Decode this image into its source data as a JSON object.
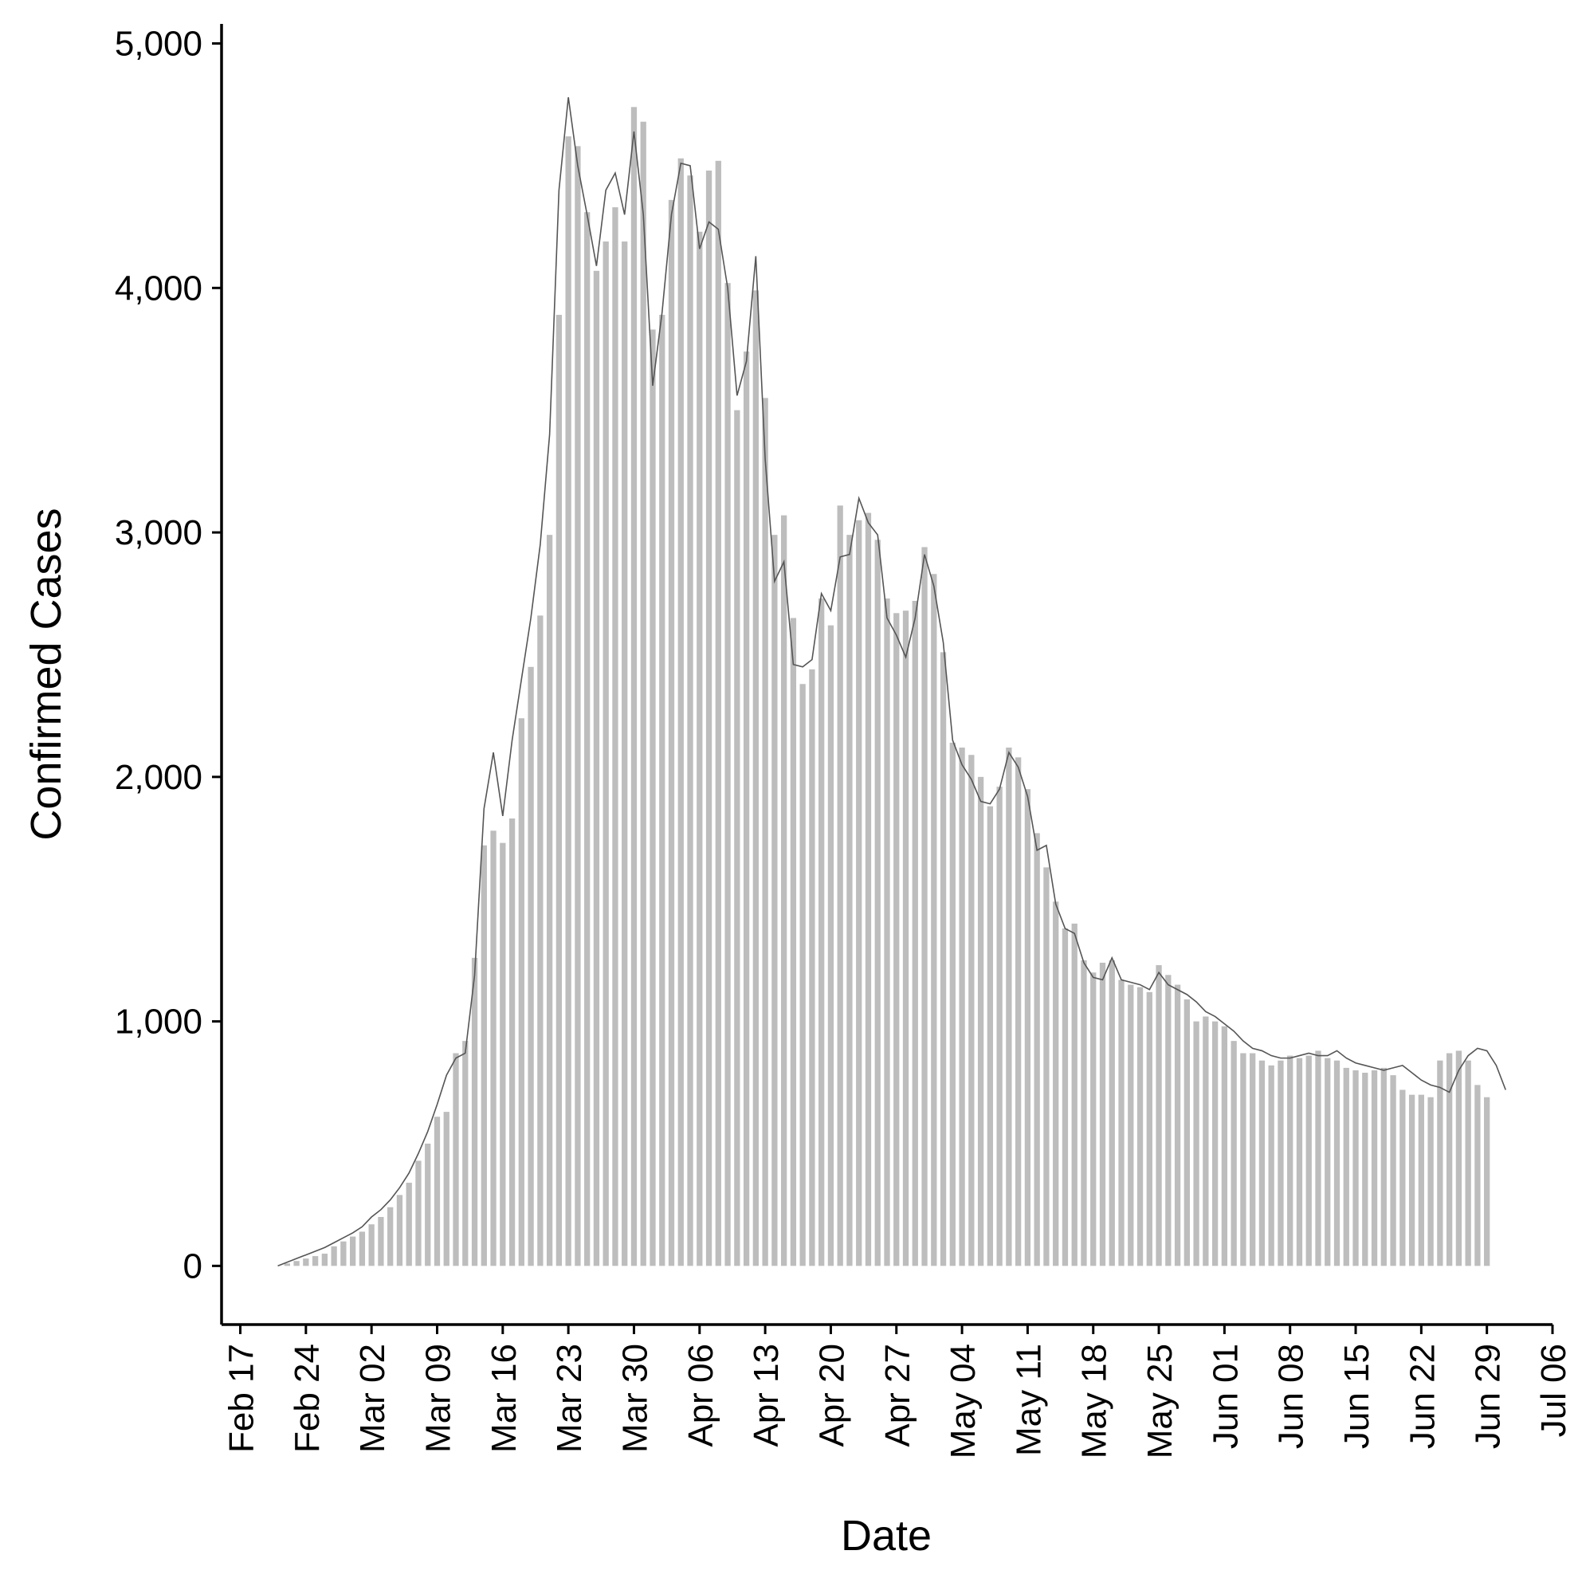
{
  "chart_data": {
    "type": "bar",
    "xlabel": "Date",
    "ylabel": "Confirmed Cases",
    "ylim": [
      -240,
      5080
    ],
    "y_ticks": [
      0,
      1000,
      2000,
      3000,
      4000,
      5000
    ],
    "y_tick_labels": [
      "0",
      "1,000",
      "2,000",
      "3,000",
      "4,000",
      "5,000"
    ],
    "x_ticks": [
      "2020-02-17",
      "2020-02-24",
      "2020-03-02",
      "2020-03-09",
      "2020-03-16",
      "2020-03-23",
      "2020-03-30",
      "2020-04-06",
      "2020-04-13",
      "2020-04-20",
      "2020-04-27",
      "2020-05-04",
      "2020-05-11",
      "2020-05-18",
      "2020-05-25",
      "2020-06-01",
      "2020-06-08",
      "2020-06-15",
      "2020-06-22",
      "2020-06-29",
      "2020-07-06"
    ],
    "x_tick_labels": [
      "Feb 17",
      "Feb 24",
      "Mar 02",
      "Mar 09",
      "Mar 16",
      "Mar 23",
      "Mar 30",
      "Apr 06",
      "Apr 13",
      "Apr 20",
      "Apr 27",
      "May 04",
      "May 11",
      "May 18",
      "May 25",
      "Jun 01",
      "Jun 08",
      "Jun 15",
      "Jun 22",
      "Jun 29",
      "Jul 06"
    ],
    "xlim": [
      "2020-02-15",
      "2020-07-06"
    ],
    "series": [
      {
        "type": "bar",
        "start_date": "2020-02-21",
        "values": [
          0,
          10,
          20,
          30,
          40,
          50,
          80,
          100,
          120,
          140,
          170,
          200,
          240,
          290,
          340,
          430,
          500,
          610,
          630,
          870,
          920,
          1260,
          1720,
          1780,
          1730,
          1830,
          2240,
          2450,
          2660,
          2990,
          3890,
          4620,
          4580,
          4310,
          4070,
          4190,
          4330,
          4190,
          4740,
          4680,
          3830,
          3890,
          4360,
          4530,
          4460,
          4230,
          4480,
          4520,
          4020,
          3500,
          3740,
          3990,
          3550,
          2990,
          3070,
          2650,
          2380,
          2440,
          2730,
          2620,
          3110,
          2990,
          3050,
          3080,
          2970,
          2730,
          2670,
          2680,
          2720,
          2940,
          2830,
          2510,
          2140,
          2120,
          2090,
          2000,
          1880,
          1960,
          2120,
          2080,
          1950,
          1770,
          1630,
          1490,
          1380,
          1400,
          1250,
          1200,
          1240,
          1250,
          1170,
          1150,
          1140,
          1120,
          1230,
          1190,
          1150,
          1090,
          1000,
          1020,
          1000,
          980,
          920,
          870,
          870,
          840,
          820,
          840,
          860,
          850,
          860,
          880,
          850,
          840,
          810,
          800,
          790,
          800,
          810,
          780,
          720,
          700,
          700,
          690,
          840,
          870,
          880,
          840,
          740,
          690
        ]
      },
      {
        "type": "line",
        "start_date": "2020-02-21",
        "values": [
          0,
          15,
          30,
          45,
          60,
          75,
          95,
          115,
          135,
          160,
          200,
          230,
          270,
          320,
          380,
          460,
          550,
          660,
          780,
          850,
          870,
          1190,
          1870,
          2100,
          1840,
          2150,
          2400,
          2650,
          2950,
          3400,
          4400,
          4780,
          4500,
          4300,
          4090,
          4400,
          4470,
          4300,
          4640,
          4300,
          3600,
          3900,
          4300,
          4510,
          4500,
          4160,
          4270,
          4240,
          4000,
          3560,
          3700,
          4130,
          3300,
          2800,
          2880,
          2460,
          2450,
          2480,
          2750,
          2680,
          2900,
          2910,
          3140,
          3040,
          2990,
          2650,
          2580,
          2490,
          2650,
          2910,
          2780,
          2550,
          2150,
          2050,
          1990,
          1900,
          1890,
          1950,
          2100,
          2040,
          1920,
          1700,
          1720,
          1480,
          1380,
          1360,
          1240,
          1180,
          1170,
          1260,
          1170,
          1160,
          1150,
          1130,
          1200,
          1150,
          1130,
          1110,
          1080,
          1040,
          1020,
          990,
          960,
          920,
          890,
          880,
          860,
          850,
          850,
          860,
          870,
          860,
          860,
          880,
          850,
          830,
          820,
          810,
          800,
          810,
          820,
          790,
          760,
          740,
          730,
          710,
          800,
          860,
          890,
          880,
          820,
          720
        ]
      }
    ]
  }
}
